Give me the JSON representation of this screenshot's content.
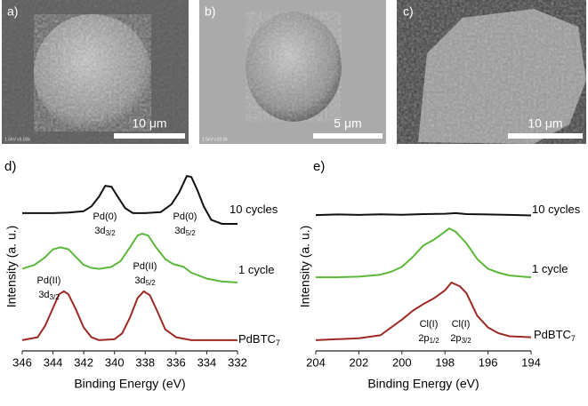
{
  "panels": [
    {
      "label": "a)",
      "scale_bar": "10 μm",
      "info": "1.5kV x5.00k"
    },
    {
      "label": "b)",
      "scale_bar": "5 μm",
      "info": "1.5kV x10.0k"
    },
    {
      "label": "c)",
      "scale_bar": "10 μm"
    }
  ],
  "chart_data": [
    {
      "type": "line",
      "panel_label": "d)",
      "xlabel": "Binding Energy (eV)",
      "ylabel": "Intensity (a. u.)",
      "xlim": [
        346,
        332
      ],
      "xticks": [
        346,
        344,
        342,
        340,
        338,
        336,
        334,
        332
      ],
      "ylim": [
        0,
        100
      ],
      "series": [
        {
          "name": "10 cycles",
          "color": "#111111",
          "x": [
            346,
            345,
            344,
            343,
            342,
            341.5,
            341,
            340.6,
            340.2,
            339.8,
            339.3,
            338.8,
            338,
            337,
            336.3,
            335.8,
            335.3,
            335,
            334.6,
            334.2,
            333.7,
            333,
            332
          ],
          "values": [
            70.5,
            70.5,
            70.5,
            70.8,
            71.5,
            74,
            79,
            84.5,
            84,
            79,
            73,
            70.5,
            70.5,
            71,
            75,
            81,
            89.5,
            89,
            82,
            74,
            67,
            65,
            65
          ]
        },
        {
          "name": "1 cycle",
          "color": "#5cb83a",
          "x": [
            346,
            345.2,
            344.5,
            344,
            343.5,
            343,
            342.5,
            342,
            341.5,
            341,
            340.2,
            339.6,
            339,
            338.5,
            338.2,
            337.8,
            337.3,
            336.7,
            336.2,
            335.5,
            335,
            334,
            333,
            332
          ],
          "values": [
            42,
            44,
            48,
            52,
            53,
            52,
            48,
            44,
            42.5,
            42,
            43,
            46,
            53,
            59,
            60,
            59,
            53,
            47,
            44.5,
            43,
            40,
            37,
            35.5,
            35
          ]
        },
        {
          "name": "PdBTC",
          "name_sub": "7",
          "color": "#9c2a23",
          "x": [
            346,
            345,
            344.5,
            344,
            343.6,
            343.3,
            343,
            342.5,
            342,
            341.5,
            341,
            340,
            339.5,
            339,
            338.5,
            338.1,
            337.7,
            337.2,
            336.7,
            336,
            335,
            334,
            333,
            332
          ],
          "values": [
            5.5,
            7,
            13,
            22,
            29,
            30.5,
            29,
            21,
            12,
            7,
            5.5,
            6,
            9,
            17,
            27,
            30.5,
            28.5,
            20,
            11,
            7,
            5.5,
            5.5,
            5.5,
            5.5
          ]
        }
      ],
      "annotations": [
        {
          "text": "Pd(0)",
          "line2": "3d",
          "sub": "3/2"
        },
        {
          "text": "Pd(0)",
          "line2": "3d",
          "sub": "5/2"
        },
        {
          "text": "Pd(II)",
          "line2": "3d",
          "sub": "3/2"
        },
        {
          "text": "Pd(II)",
          "line2": "3d",
          "sub": "5/2"
        }
      ]
    },
    {
      "type": "line",
      "panel_label": "e)",
      "xlabel": "Binding Energy (eV)",
      "ylabel": "Intensity (a. u.)",
      "xlim": [
        204,
        194
      ],
      "xticks": [
        204,
        202,
        200,
        198,
        196,
        194
      ],
      "ylim": [
        0,
        100
      ],
      "series": [
        {
          "name": "10 cycles",
          "color": "#111111",
          "x": [
            204,
            203,
            202,
            201,
            200,
            199,
            198,
            197.5,
            197,
            196,
            195,
            194
          ],
          "values": [
            69.5,
            69.8,
            69.6,
            69.9,
            69.7,
            70,
            70.2,
            70.5,
            70,
            69.8,
            69.6,
            69.3
          ]
        },
        {
          "name": "1 cycle",
          "color": "#5cb83a",
          "x": [
            204,
            203,
            202,
            201,
            200.5,
            200,
            199.5,
            199,
            198.5,
            198,
            197.8,
            197.5,
            197,
            196.5,
            196,
            195.5,
            195,
            194
          ],
          "values": [
            37.7,
            37.7,
            38,
            39,
            40.5,
            43,
            48,
            54,
            57,
            61,
            62.7,
            61,
            55,
            47,
            42,
            40,
            38.6,
            37.7
          ]
        },
        {
          "name": "PdBTC",
          "name_sub": "7",
          "color": "#9c2a23",
          "x": [
            204,
            203,
            202,
            201,
            200.5,
            200,
            199.5,
            199,
            198.5,
            198,
            197.7,
            197.3,
            197,
            196.5,
            196,
            195.5,
            195,
            194
          ],
          "values": [
            5.5,
            6,
            6.5,
            8,
            12,
            16,
            20.5,
            24,
            27,
            31,
            35,
            33,
            29.5,
            18,
            12,
            9,
            7.5,
            7
          ]
        }
      ],
      "annotations": [
        {
          "text": "Cl(I)",
          "line2": "2p",
          "sub": "1/2"
        },
        {
          "text": "Cl(I)",
          "line2": "2p",
          "sub": "3/2"
        }
      ]
    }
  ]
}
